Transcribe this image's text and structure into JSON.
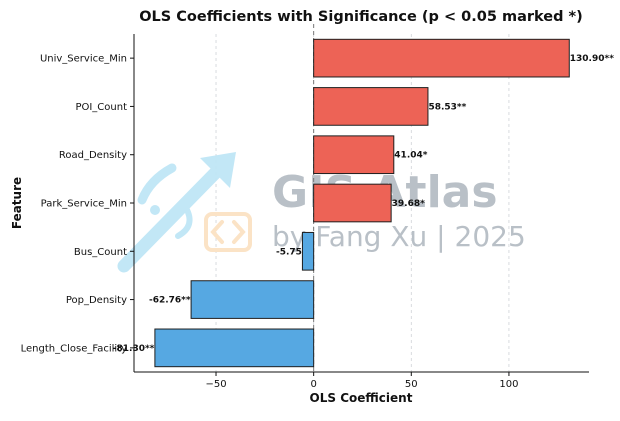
{
  "chart_data": {
    "type": "bar",
    "orientation": "horizontal",
    "title": "OLS Coefficients with Significance (p < 0.05 marked *)",
    "xlabel": "OLS Coefficient",
    "ylabel": "Feature",
    "xlim": [
      -92,
      141
    ],
    "xticks": [
      -50,
      0,
      50,
      100
    ],
    "xtick_labels": [
      "−50",
      "0",
      "50",
      "100"
    ],
    "grid": "vertical-dashed",
    "zero_line": "dashed",
    "categories": [
      "Univ_Service_Min",
      "POI_Count",
      "Road_Density",
      "Park_Service_Min",
      "Bus_Count",
      "Pop_Density",
      "Length_Close_Facility"
    ],
    "values": [
      130.9,
      58.53,
      41.04,
      39.68,
      -5.75,
      -62.76,
      -81.3
    ],
    "value_labels": [
      "130.90**",
      "58.53**",
      "41.04*",
      "39.68*",
      "-5.75",
      "-62.76**",
      "-81.30**"
    ],
    "colors": {
      "positive": "#ed6356",
      "negative": "#56a8e2",
      "edge": "#1f1f1f"
    }
  },
  "watermark": {
    "title": "GIS Atlas",
    "subtitle": "by Fang Xu | 2025",
    "colors": {
      "text": "#b9c0c7",
      "arrow": "#bfe6f6",
      "code_icon": "#fbe3c6"
    }
  }
}
